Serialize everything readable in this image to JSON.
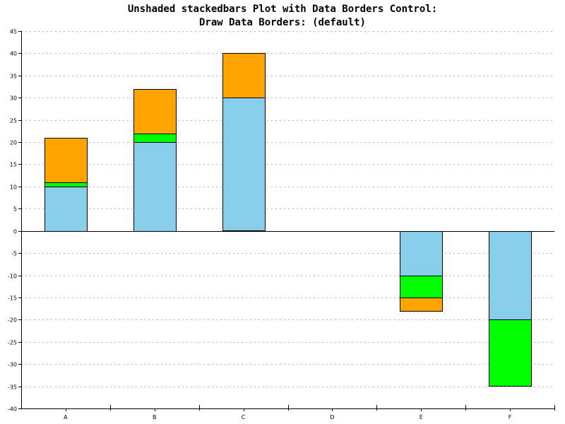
{
  "chart_data": {
    "type": "bar",
    "stacked": true,
    "title_lines": [
      "Unshaded stackedbars Plot with Data Borders Control:",
      "Draw Data Borders: (default)"
    ],
    "categories": [
      "A",
      "B",
      "C",
      "D",
      "E",
      "F"
    ],
    "series": [
      {
        "values": [
          10,
          20,
          30,
          0,
          -10,
          -20
        ],
        "color": "#87ceeb"
      },
      {
        "values": [
          1,
          2,
          0,
          0,
          -5,
          -15
        ],
        "color": "#00ff00"
      },
      {
        "values": [
          10,
          10,
          10,
          0,
          -3,
          0
        ],
        "color": "#ffa500"
      }
    ],
    "ylim": [
      -40,
      45
    ],
    "yticks": [
      -40,
      -35,
      -30,
      -25,
      -20,
      -15,
      -10,
      -5,
      0,
      5,
      10,
      15,
      20,
      25,
      30,
      35,
      40,
      45
    ],
    "grid": true,
    "data_borders": true,
    "legend": "none"
  }
}
